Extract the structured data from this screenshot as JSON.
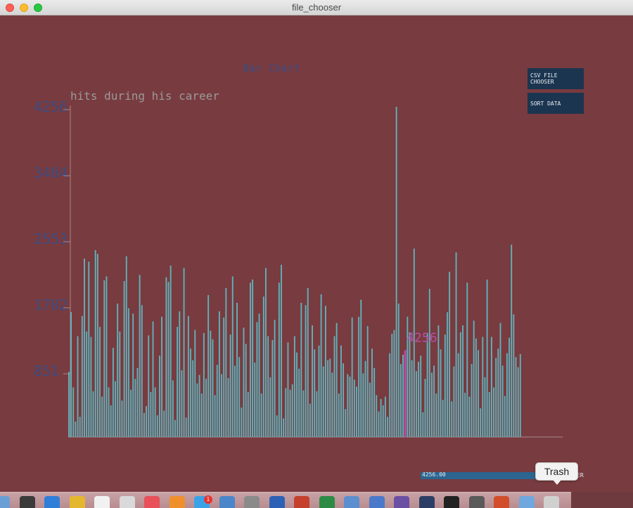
{
  "window": {
    "title": "file_chooser"
  },
  "controls": {
    "csv_button": "CSV FILE CHOOSER",
    "sort_button": "SORT DATA",
    "slider_value": "4256.00",
    "slider_label_visible": "ER",
    "slider_fraction": 1.0
  },
  "dock": {
    "tooltip": "Trash",
    "badge": "1",
    "icons": [
      "finder-icon",
      "activity-monitor-icon",
      "safari-icon",
      "chrome-icon",
      "calendar-icon",
      "preview-icon",
      "music-icon",
      "books-icon",
      "app-store-icon",
      "xcode-icon",
      "system-preferences-icon",
      "word-icon",
      "r-icon",
      "excel-icon",
      "network-icon",
      "finder-window-icon",
      "eclipse-icon",
      "processing-icon",
      "terminal-icon",
      "sublime-icon",
      "java-icon",
      "folder-icon",
      "trash-icon"
    ]
  },
  "colors": {
    "bar": "#61b1bb",
    "highlight": "#b64fa6",
    "axis_label": "#3e4b80",
    "background": "#783b3f"
  },
  "chart_data": {
    "type": "bar",
    "title": "Bar Chart",
    "ylabel": "hits during his career",
    "xlabel": "",
    "ylim": [
      0,
      4256
    ],
    "y_ticks": [
      851,
      1702,
      2553,
      3404,
      4256
    ],
    "y_tick_labels": [
      "851",
      "1702",
      "2553",
      "3404",
      "4256"
    ],
    "grid": false,
    "highlight_label": "4256",
    "highlight_index": 152,
    "values": [
      840,
      1610,
      640,
      200,
      1300,
      260,
      1560,
      2300,
      1360,
      2260,
      1290,
      590,
      2410,
      2360,
      1420,
      520,
      2020,
      2070,
      640,
      410,
      1150,
      720,
      1720,
      1360,
      470,
      2010,
      2330,
      1660,
      610,
      1590,
      750,
      890,
      2090,
      1700,
      310,
      400,
      1310,
      580,
      1490,
      640,
      280,
      1050,
      1550,
      340,
      2060,
      2000,
      2210,
      730,
      220,
      1420,
      1620,
      860,
      2180,
      250,
      1560,
      1140,
      990,
      1380,
      690,
      800,
      560,
      1340,
      750,
      1830,
      1370,
      1260,
      540,
      930,
      1620,
      810,
      1540,
      1920,
      760,
      1320,
      2070,
      920,
      1730,
      1030,
      380,
      1410,
      1200,
      580,
      1990,
      2030,
      960,
      1480,
      1590,
      560,
      1810,
      2180,
      1300,
      770,
      1250,
      1510,
      280,
      1990,
      2220,
      240,
      630,
      1220,
      610,
      680,
      1300,
      1090,
      880,
      1730,
      600,
      1700,
      1920,
      430,
      1440,
      1130,
      590,
      1180,
      1840,
      910,
      1690,
      990,
      1010,
      830,
      1300,
      1470,
      560,
      1180,
      950,
      360,
      810,
      780,
      1540,
      740,
      650,
      1550,
      1770,
      820,
      980,
      1430,
      700,
      1140,
      890,
      540,
      330,
      490,
      410,
      520,
      260,
      1080,
      1330,
      1380,
      4256,
      1720,
      940,
      1060,
      1120,
      1550,
      1350,
      990,
      2430,
      850,
      970,
      1050,
      320,
      750,
      1340,
      1910,
      830,
      920,
      560,
      1440,
      1130,
      480,
      1320,
      1610,
      2130,
      460,
      910,
      2380,
      1080,
      1350,
      1440,
      570,
      1990,
      520,
      940,
      1500,
      1270,
      1120,
      370,
      1290,
      770,
      2030,
      580,
      1290,
      640,
      1020,
      1140,
      1470,
      920,
      530,
      1080,
      1280,
      2480,
      1580,
      1030,
      900,
      1070
    ]
  }
}
